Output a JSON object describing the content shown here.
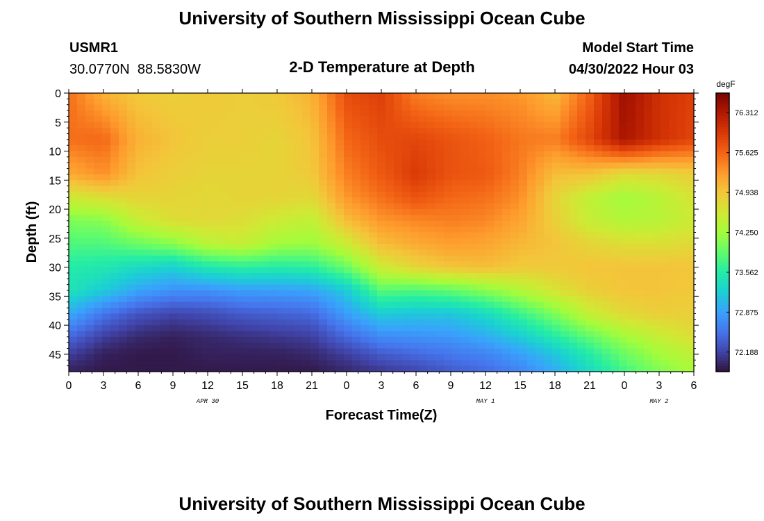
{
  "chart_data": {
    "type": "heatmap",
    "title": "University of Southern Mississippi Ocean Cube",
    "station_id": "USMR1",
    "location": "30.0770N  88.5830W",
    "subtitle": "2-D Temperature at Depth",
    "model_start_label": "Model Start Time",
    "model_start_value": "04/30/2022 Hour 03",
    "xlabel": "Forecast Time(Z)",
    "ylabel": "Depth (ft)",
    "x_hours": [
      0,
      3,
      6,
      9,
      12,
      15,
      18,
      21,
      24,
      27,
      30,
      33,
      36,
      39,
      42,
      45,
      48,
      51,
      54
    ],
    "x_tick_labels": [
      "0",
      "3",
      "6",
      "9",
      "12",
      "15",
      "18",
      "21",
      "0",
      "3",
      "6",
      "9",
      "12",
      "15",
      "18",
      "21",
      "0",
      "3",
      "6"
    ],
    "date_labels": [
      {
        "hour": 12,
        "label": "APR 30"
      },
      {
        "hour": 36,
        "label": "MAY 1"
      },
      {
        "hour": 51,
        "label": "MAY 2"
      }
    ],
    "xlim": [
      0,
      54
    ],
    "ylim": [
      0,
      48
    ],
    "y_tick_labels": [
      0,
      5,
      10,
      15,
      20,
      25,
      30,
      35,
      40,
      45
    ],
    "depths": [
      0,
      8,
      14,
      18,
      22,
      26,
      30,
      34,
      38,
      42,
      45,
      48
    ],
    "temperature": [
      [
        75.55,
        75.1,
        74.9,
        74.85,
        74.9,
        74.85,
        74.9,
        75.1,
        75.8,
        75.9,
        75.45,
        75.35,
        75.35,
        75.3,
        75.05,
        75.65,
        76.45,
        76.05,
        75.9
      ],
      [
        75.55,
        75.6,
        75.1,
        74.95,
        74.85,
        74.85,
        74.8,
        74.95,
        75.6,
        75.8,
        75.85,
        75.75,
        75.65,
        75.5,
        75.45,
        75.85,
        76.35,
        76.05,
        75.85
      ],
      [
        75.15,
        75.35,
        74.95,
        74.85,
        74.8,
        74.8,
        74.8,
        74.9,
        75.45,
        75.7,
        75.95,
        75.75,
        75.7,
        75.45,
        75.0,
        74.95,
        74.7,
        74.75,
        74.85
      ],
      [
        74.55,
        74.7,
        74.8,
        74.8,
        74.75,
        74.8,
        74.8,
        74.75,
        75.3,
        75.55,
        75.75,
        75.6,
        75.55,
        75.35,
        74.8,
        74.45,
        74.25,
        74.4,
        74.65
      ],
      [
        74.05,
        74.1,
        74.5,
        74.7,
        74.75,
        74.7,
        74.55,
        74.45,
        75.0,
        75.3,
        75.4,
        75.45,
        75.4,
        75.2,
        74.85,
        74.5,
        74.35,
        74.4,
        74.55
      ],
      [
        73.8,
        73.8,
        73.95,
        74.1,
        74.4,
        74.5,
        74.25,
        74.2,
        74.55,
        75.0,
        75.15,
        75.25,
        75.2,
        75.05,
        74.95,
        74.8,
        74.7,
        74.7,
        74.75
      ],
      [
        73.55,
        73.5,
        73.35,
        73.25,
        73.5,
        73.6,
        73.55,
        73.6,
        73.95,
        74.55,
        74.8,
        74.95,
        75.0,
        74.9,
        74.9,
        74.95,
        74.95,
        74.95,
        74.95
      ],
      [
        73.45,
        73.2,
        72.9,
        72.75,
        72.75,
        72.85,
        72.85,
        72.9,
        73.2,
        73.85,
        73.8,
        73.9,
        74.1,
        74.35,
        74.65,
        74.85,
        74.95,
        74.95,
        74.9
      ],
      [
        72.95,
        72.55,
        72.3,
        72.2,
        72.25,
        72.35,
        72.4,
        72.45,
        72.85,
        73.2,
        73.15,
        73.15,
        73.35,
        73.7,
        74.05,
        74.5,
        74.75,
        74.85,
        74.85
      ],
      [
        72.45,
        72.15,
        72.0,
        71.95,
        72.0,
        72.05,
        72.1,
        72.15,
        72.45,
        72.7,
        72.75,
        72.8,
        72.95,
        73.2,
        73.55,
        73.9,
        74.25,
        74.5,
        74.7
      ],
      [
        72.15,
        71.95,
        71.9,
        71.9,
        71.95,
        71.95,
        71.95,
        72.0,
        72.15,
        72.35,
        72.45,
        72.55,
        72.65,
        72.85,
        73.15,
        73.55,
        73.95,
        74.25,
        74.45
      ],
      [
        71.95,
        71.9,
        71.9,
        71.9,
        71.9,
        71.9,
        71.9,
        71.9,
        72.0,
        72.1,
        72.2,
        72.35,
        72.45,
        72.65,
        72.95,
        73.35,
        73.75,
        74.05,
        74.3
      ]
    ],
    "colorbar": {
      "unit": "degF",
      "vmin": 71.85,
      "vmax": 76.65,
      "ticks": [
        "76.312",
        "75.625",
        "74.938",
        "74.250",
        "73.562",
        "72.875",
        "72.188"
      ],
      "colors": [
        "#30123b",
        "#4145ab",
        "#4675ed",
        "#39a2fc",
        "#1bcfd4",
        "#24eca6",
        "#61fc6c",
        "#a4fc3b",
        "#d1e834",
        "#f3c63a",
        "#fe9b2d",
        "#f36315",
        "#d93806",
        "#b11901",
        "#7a0402"
      ]
    },
    "footer_title": "University of Southern Mississippi Ocean Cube"
  }
}
